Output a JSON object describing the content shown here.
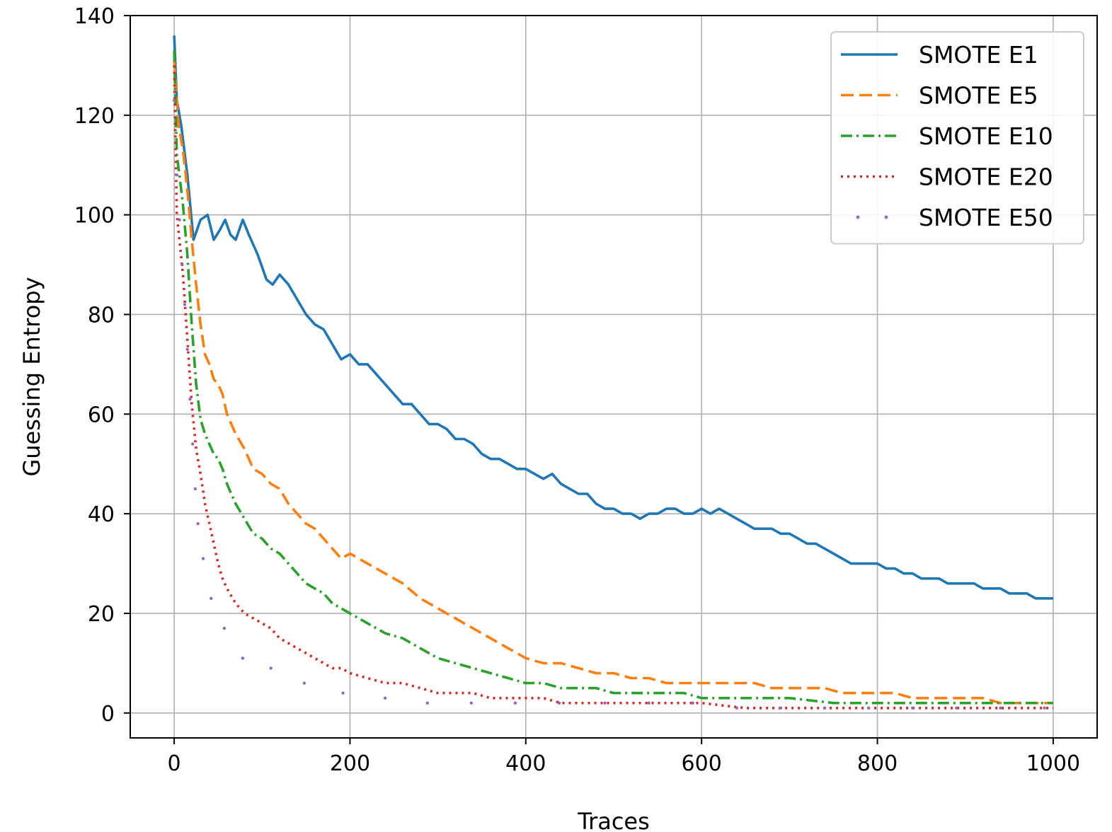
{
  "chart_data": {
    "type": "line",
    "title": "",
    "xlabel": "Traces",
    "ylabel": "Guessing Entropy",
    "xlim": [
      -50,
      1050
    ],
    "ylim": [
      -5,
      140
    ],
    "xticks": [
      0,
      200,
      400,
      600,
      800,
      1000
    ],
    "yticks": [
      0,
      20,
      40,
      60,
      80,
      100,
      120,
      140
    ],
    "grid": true,
    "legend_position": "top-right",
    "series": [
      {
        "name": "SMOTE E1",
        "color": "#1f77b4",
        "style": "solid",
        "x": [
          0,
          3,
          8,
          15,
          22,
          30,
          38,
          45,
          52,
          58,
          64,
          70,
          78,
          85,
          95,
          105,
          112,
          120,
          130,
          140,
          150,
          160,
          170,
          180,
          190,
          200,
          210,
          220,
          230,
          240,
          250,
          260,
          270,
          280,
          290,
          300,
          310,
          320,
          330,
          340,
          350,
          360,
          370,
          380,
          390,
          400,
          410,
          420,
          430,
          440,
          450,
          460,
          470,
          480,
          490,
          500,
          510,
          520,
          530,
          540,
          550,
          560,
          570,
          580,
          590,
          600,
          610,
          620,
          630,
          640,
          650,
          660,
          670,
          680,
          690,
          700,
          710,
          720,
          730,
          740,
          750,
          760,
          770,
          780,
          790,
          800,
          810,
          820,
          830,
          840,
          850,
          860,
          870,
          880,
          890,
          900,
          910,
          920,
          930,
          940,
          950,
          960,
          970,
          980,
          990,
          1000
        ],
        "y": [
          136,
          123,
          118,
          108,
          95,
          99,
          100,
          95,
          97,
          99,
          96,
          95,
          99,
          96,
          92,
          87,
          86,
          88,
          86,
          83,
          80,
          78,
          77,
          74,
          71,
          72,
          70,
          70,
          68,
          66,
          64,
          62,
          62,
          60,
          58,
          58,
          57,
          55,
          55,
          54,
          52,
          51,
          51,
          50,
          49,
          49,
          48,
          47,
          48,
          46,
          45,
          44,
          44,
          42,
          41,
          41,
          40,
          40,
          39,
          40,
          40,
          41,
          41,
          40,
          40,
          41,
          40,
          41,
          40,
          39,
          38,
          37,
          37,
          37,
          36,
          36,
          35,
          34,
          34,
          33,
          32,
          31,
          30,
          30,
          30,
          30,
          29,
          29,
          28,
          28,
          27,
          27,
          27,
          26,
          26,
          26,
          26,
          25,
          25,
          25,
          24,
          24,
          24,
          23,
          23,
          23
        ]
      },
      {
        "name": "SMOTE E5",
        "color": "#ff7f0e",
        "style": "dashed",
        "x": [
          0,
          5,
          10,
          15,
          20,
          25,
          30,
          35,
          40,
          45,
          50,
          55,
          60,
          70,
          80,
          90,
          100,
          110,
          120,
          130,
          140,
          150,
          160,
          170,
          180,
          190,
          200,
          220,
          240,
          260,
          280,
          300,
          320,
          340,
          360,
          380,
          400,
          420,
          440,
          460,
          480,
          500,
          520,
          540,
          560,
          580,
          600,
          620,
          640,
          660,
          680,
          700,
          720,
          740,
          760,
          780,
          800,
          820,
          840,
          860,
          880,
          900,
          920,
          940,
          960,
          980,
          1000
        ],
        "y": [
          131,
          118,
          113,
          105,
          95,
          86,
          78,
          72,
          70,
          67,
          66,
          64,
          60,
          56,
          53,
          49,
          48,
          46,
          45,
          42,
          40,
          38,
          37,
          35,
          33,
          31,
          32,
          30,
          28,
          26,
          23,
          21,
          19,
          17,
          15,
          13,
          11,
          10,
          10,
          9,
          8,
          8,
          7,
          7,
          6,
          6,
          6,
          6,
          6,
          6,
          5,
          5,
          5,
          5,
          4,
          4,
          4,
          4,
          3,
          3,
          3,
          3,
          3,
          2,
          2,
          2,
          2
        ]
      },
      {
        "name": "SMOTE E10",
        "color": "#2ca02c",
        "style": "dashdot",
        "x": [
          0,
          3,
          6,
          10,
          15,
          20,
          25,
          30,
          35,
          40,
          45,
          50,
          55,
          60,
          70,
          80,
          90,
          100,
          110,
          120,
          130,
          140,
          150,
          160,
          170,
          180,
          190,
          200,
          220,
          240,
          260,
          280,
          300,
          320,
          340,
          360,
          380,
          400,
          420,
          440,
          460,
          480,
          500,
          520,
          540,
          560,
          580,
          600,
          620,
          640,
          660,
          680,
          700,
          750,
          800,
          850,
          900,
          950,
          1000
        ],
        "y": [
          133,
          112,
          108,
          102,
          92,
          78,
          66,
          59,
          56,
          54,
          52,
          51,
          49,
          46,
          42,
          39,
          36,
          35,
          33,
          32,
          30,
          28,
          26,
          25,
          24,
          22,
          21,
          20,
          18,
          16,
          15,
          13,
          11,
          10,
          9,
          8,
          7,
          6,
          6,
          5,
          5,
          5,
          4,
          4,
          4,
          4,
          4,
          3,
          3,
          3,
          3,
          3,
          3,
          2,
          2,
          2,
          2,
          2,
          2
        ]
      },
      {
        "name": "SMOTE E20",
        "color": "#d62728",
        "style": "dotted",
        "x": [
          0,
          3,
          6,
          10,
          15,
          20,
          25,
          30,
          35,
          40,
          45,
          50,
          55,
          60,
          70,
          80,
          90,
          100,
          110,
          120,
          130,
          140,
          150,
          160,
          170,
          180,
          190,
          200,
          220,
          240,
          260,
          280,
          300,
          320,
          340,
          360,
          380,
          400,
          420,
          440,
          460,
          480,
          500,
          550,
          600,
          650,
          700,
          750,
          800,
          850,
          900,
          950,
          1000
        ],
        "y": [
          130,
          100,
          95,
          88,
          75,
          62,
          53,
          48,
          42,
          38,
          34,
          30,
          27,
          25,
          22,
          20,
          19,
          18,
          17,
          15,
          14,
          13,
          12,
          11,
          10,
          9,
          9,
          8,
          7,
          6,
          6,
          5,
          4,
          4,
          4,
          3,
          3,
          3,
          3,
          2,
          2,
          2,
          2,
          2,
          2,
          1,
          1,
          1,
          1,
          1,
          1,
          1,
          1
        ]
      },
      {
        "name": "SMOTE E50",
        "color": "#9467bd",
        "style": "sparse-dots",
        "x": [
          0,
          3,
          6,
          9,
          12,
          15,
          18,
          21,
          24,
          27,
          33,
          42,
          57,
          78,
          110,
          148,
          192,
          240,
          288,
          338,
          388,
          438,
          490,
          540,
          590,
          640,
          690,
          740,
          790,
          840,
          890,
          940,
          990
        ],
        "y": [
          123,
          108,
          99,
          90,
          82,
          73,
          63,
          54,
          45,
          38,
          31,
          23,
          17,
          11,
          9,
          6,
          4,
          3,
          2,
          2,
          2,
          2,
          2,
          2,
          2,
          1,
          1,
          1,
          1,
          1,
          1,
          1,
          1
        ]
      }
    ]
  }
}
